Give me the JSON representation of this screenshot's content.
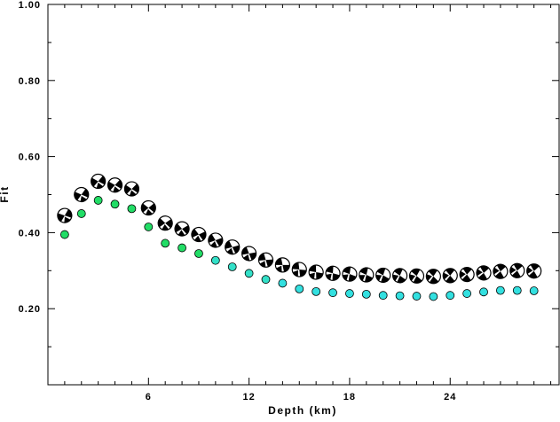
{
  "chart_data": {
    "type": "scatter",
    "xlabel": "Depth (km)",
    "ylabel": "Fit",
    "xlim": [
      0,
      30.5
    ],
    "ylim": [
      0,
      1.0
    ],
    "x_ticks": [
      6,
      12,
      18,
      24
    ],
    "x_tick_labels": [
      "6",
      "12",
      "18",
      "24"
    ],
    "y_ticks": [
      0.2,
      0.4,
      0.6,
      0.8,
      1.0
    ],
    "y_tick_labels": [
      "0.20",
      "0.40",
      "0.60",
      "0.80",
      "1.00"
    ],
    "grid": false,
    "colors": {
      "green_marker": "#22dd66",
      "cyan_marker": "#33e0e0",
      "beachball_fill": "#000000",
      "axis": "#000000"
    },
    "series": [
      {
        "marker": "mechanism-beachball",
        "x": [
          1,
          2,
          3,
          4,
          5,
          6,
          7,
          8,
          9,
          10,
          11,
          12,
          13,
          14,
          15,
          16,
          17,
          18,
          19,
          20,
          21,
          22,
          23,
          24,
          25,
          26,
          27,
          28,
          29
        ],
        "values": [
          0.445,
          0.5,
          0.535,
          0.525,
          0.515,
          0.465,
          0.425,
          0.41,
          0.395,
          0.38,
          0.362,
          0.345,
          0.328,
          0.315,
          0.303,
          0.296,
          0.293,
          0.291,
          0.289,
          0.288,
          0.287,
          0.286,
          0.285,
          0.287,
          0.29,
          0.294,
          0.298,
          0.3,
          0.299
        ]
      },
      {
        "marker": "filled-circle",
        "x": [
          1,
          2,
          3,
          4,
          5,
          6,
          7,
          8,
          9,
          10,
          11,
          12,
          13,
          14,
          15,
          16,
          17,
          18,
          19,
          20,
          21,
          22,
          23,
          24,
          25,
          26,
          27,
          28,
          29
        ],
        "values": [
          0.395,
          0.45,
          0.485,
          0.475,
          0.463,
          0.415,
          0.372,
          0.36,
          0.345,
          0.327,
          0.31,
          0.293,
          0.277,
          0.267,
          0.252,
          0.245,
          0.242,
          0.24,
          0.238,
          0.235,
          0.234,
          0.233,
          0.232,
          0.235,
          0.24,
          0.244,
          0.248,
          0.248,
          0.247
        ],
        "marker_colors": [
          "#22dd66",
          "#22dd66",
          "#22dd66",
          "#22dd66",
          "#22dd66",
          "#22dd66",
          "#22dd66",
          "#22dd66",
          "#22dd66",
          "#33e0c8",
          "#33e0c8",
          "#33e0c8",
          "#33e0c8",
          "#33e0e0",
          "#33e0e0",
          "#33e0e0",
          "#33e0e0",
          "#33e0e0",
          "#33e0e0",
          "#33e0e0",
          "#33e0e0",
          "#33e0e0",
          "#33e0e0",
          "#33e0e0",
          "#33e0e0",
          "#33e0e0",
          "#33e0e0",
          "#33e0e0",
          "#33e0e0"
        ]
      }
    ],
    "beachball_rotation_deg": [
      -60,
      -55,
      -50,
      -48,
      -45,
      -40,
      -35,
      -30,
      -25,
      -20,
      -15,
      -10,
      -5,
      0,
      5,
      10,
      15,
      20,
      25,
      30,
      35,
      40,
      45,
      50,
      55,
      60,
      60,
      60,
      60
    ]
  }
}
